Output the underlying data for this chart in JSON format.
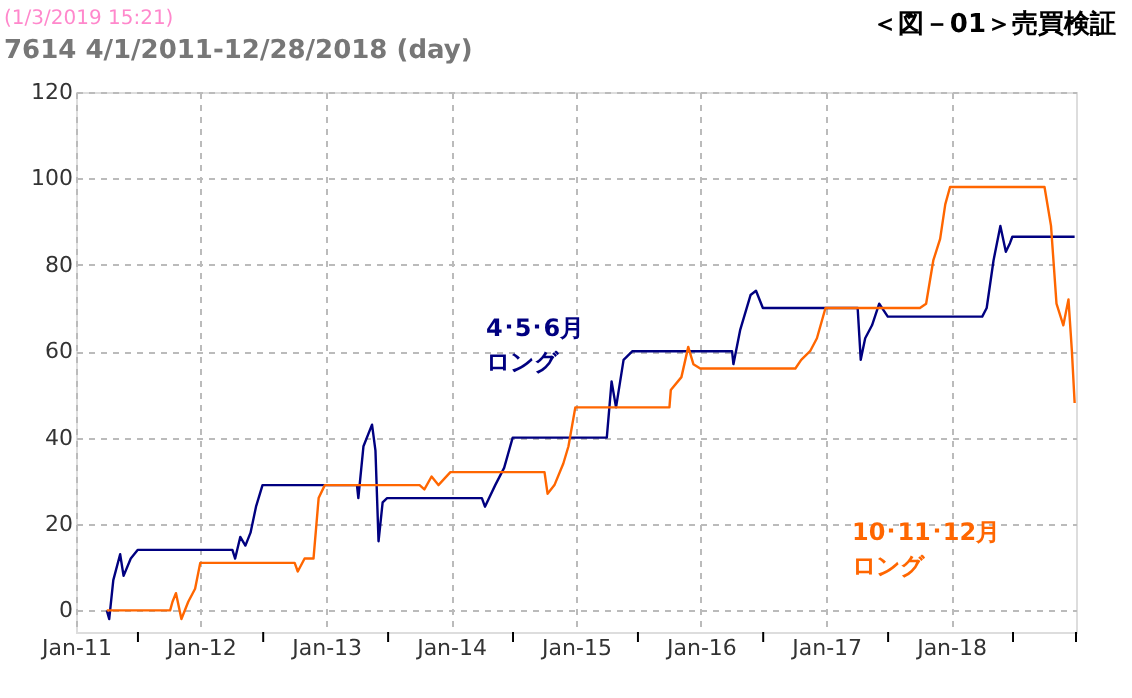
{
  "chart_data": {
    "type": "line",
    "title": "7614  4/1/2011-12/28/2018 (day)",
    "annotations": [
      "(1/3/2019 15:21)",
      "＜図－01＞売買検証"
    ],
    "xlim": [
      "2011-01-01",
      "2019-01-01"
    ],
    "xticks": [
      {
        "value": "2011-01-01",
        "label": "Jan-11"
      },
      {
        "value": "2011-07-01",
        "label": null
      },
      {
        "value": "2012-01-01",
        "label": "Jan-12"
      },
      {
        "value": "2012-07-01",
        "label": null
      },
      {
        "value": "2013-01-01",
        "label": "Jan-13"
      },
      {
        "value": "2013-07-01",
        "label": null
      },
      {
        "value": "2014-01-01",
        "label": "Jan-14"
      },
      {
        "value": "2014-07-01",
        "label": null
      },
      {
        "value": "2015-01-01",
        "label": "Jan-15"
      },
      {
        "value": "2015-07-01",
        "label": null
      },
      {
        "value": "2016-01-01",
        "label": "Jan-16"
      },
      {
        "value": "2016-07-01",
        "label": null
      },
      {
        "value": "2017-01-01",
        "label": "Jan-17"
      },
      {
        "value": "2017-07-01",
        "label": null
      },
      {
        "value": "2018-01-01",
        "label": "Jan-18"
      },
      {
        "value": "2018-07-01",
        "label": null
      },
      {
        "value": "2019-01-01",
        "label": null
      }
    ],
    "ylim": [
      -5,
      120
    ],
    "yticks": [
      0,
      20,
      40,
      60,
      80,
      100,
      120
    ],
    "grid": true,
    "legend": false,
    "marker": "none",
    "line_style": "solid",
    "series": [
      {
        "name": "4･5･6月ロング",
        "color": "#000080",
        "x": [
          "2011-04-01",
          "2011-04-08",
          "2011-04-20",
          "2011-05-10",
          "2011-05-20",
          "2011-06-10",
          "2011-06-30",
          "2012-04-02",
          "2012-04-10",
          "2012-04-25",
          "2012-05-10",
          "2012-05-25",
          "2012-06-10",
          "2012-06-29",
          "2013-04-01",
          "2013-04-05",
          "2013-04-20",
          "2013-05-15",
          "2013-05-25",
          "2013-06-03",
          "2013-06-15",
          "2013-06-28",
          "2014-04-01",
          "2014-04-10",
          "2014-05-10",
          "2014-06-05",
          "2014-06-30",
          "2015-04-01",
          "2015-04-15",
          "2015-04-28",
          "2015-05-20",
          "2015-06-15",
          "2015-06-30",
          "2016-04-01",
          "2016-04-05",
          "2016-04-25",
          "2016-05-25",
          "2016-06-10",
          "2016-06-30",
          "2017-04-03",
          "2017-04-12",
          "2017-04-25",
          "2017-05-15",
          "2017-06-05",
          "2017-06-30",
          "2018-04-02",
          "2018-04-15",
          "2018-05-05",
          "2018-05-25",
          "2018-06-10",
          "2018-06-22",
          "2018-06-29",
          "2018-12-28"
        ],
        "values": [
          0,
          -2,
          7,
          13,
          8,
          12,
          14,
          14,
          12,
          17,
          15,
          18,
          24,
          29,
          29,
          26,
          38,
          43,
          37,
          16,
          25,
          26,
          26,
          24,
          29,
          33,
          40,
          40,
          53,
          47,
          58,
          60,
          60,
          60,
          57,
          65,
          73,
          74,
          70,
          70,
          58,
          63,
          66,
          71,
          68,
          68,
          70,
          81,
          89,
          83,
          85,
          86.5,
          86.5
        ]
      },
      {
        "name": "10･11･12月ロング",
        "color": "#ff6600",
        "x": [
          "2011-04-01",
          "2011-10-03",
          "2011-10-10",
          "2011-10-20",
          "2011-11-05",
          "2011-11-25",
          "2011-12-15",
          "2011-12-30",
          "2012-10-01",
          "2012-10-10",
          "2012-10-30",
          "2012-11-25",
          "2012-12-10",
          "2012-12-28",
          "2013-10-01",
          "2013-10-15",
          "2013-11-05",
          "2013-11-25",
          "2013-12-30",
          "2014-10-01",
          "2014-10-10",
          "2014-10-30",
          "2014-11-25",
          "2014-12-10",
          "2014-12-30",
          "2015-10-01",
          "2015-10-05",
          "2015-11-05",
          "2015-11-25",
          "2015-12-10",
          "2015-12-30",
          "2016-10-03",
          "2016-10-20",
          "2016-11-15",
          "2016-12-05",
          "2016-12-30",
          "2017-10-02",
          "2017-10-20",
          "2017-11-10",
          "2017-11-30",
          "2017-12-15",
          "2017-12-29",
          "2018-10-01",
          "2018-10-20",
          "2018-11-05",
          "2018-11-25",
          "2018-12-10",
          "2018-12-20",
          "2018-12-28"
        ],
        "values": [
          0,
          0,
          2,
          4,
          -2,
          2,
          5,
          11,
          11,
          9,
          12,
          12,
          26,
          29,
          29,
          28,
          31,
          29,
          32,
          32,
          27,
          29,
          34,
          38,
          47,
          47,
          51,
          54,
          61,
          57,
          56,
          56,
          58,
          60,
          63,
          70,
          70,
          71,
          81,
          86,
          94,
          98,
          98,
          89,
          71,
          66,
          72,
          60,
          48
        ]
      }
    ]
  }
}
